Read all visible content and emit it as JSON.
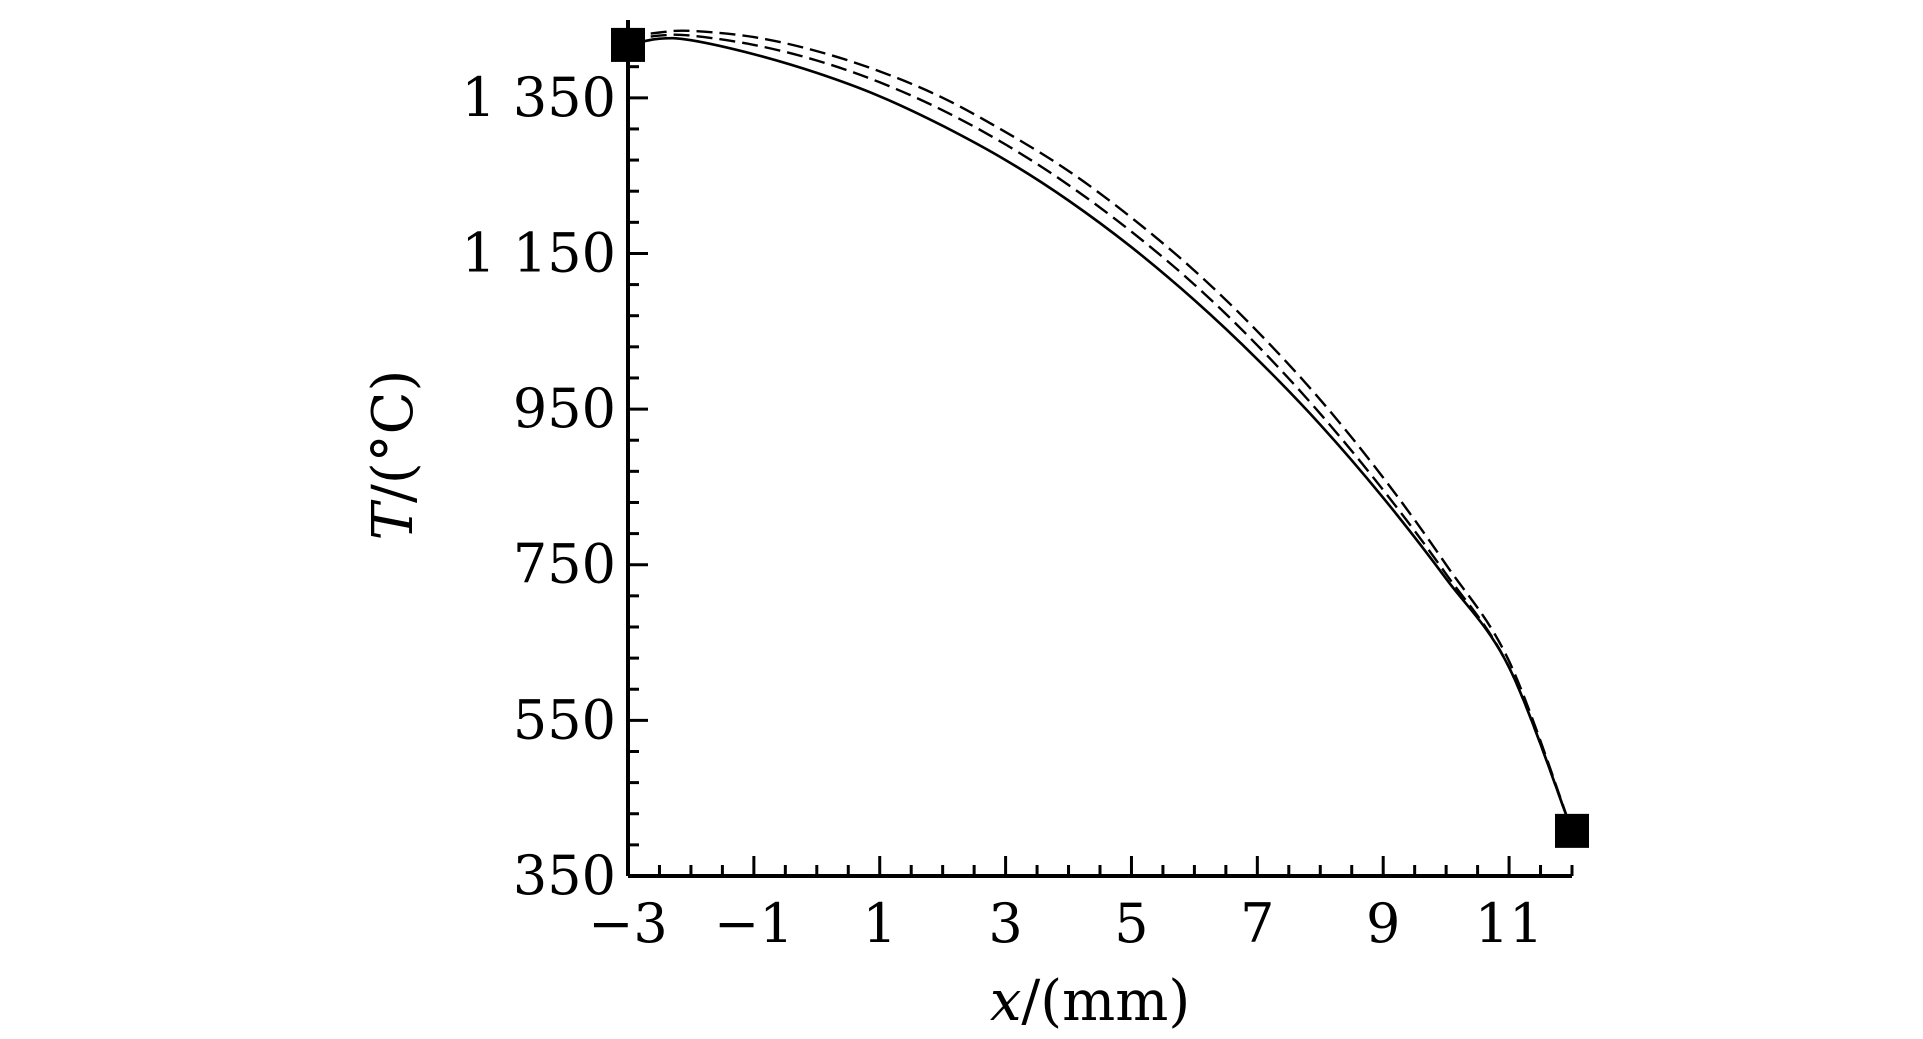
{
  "chart_data": {
    "type": "line",
    "title": "",
    "xlabel_var": "x",
    "xlabel_unit": "/(mm)",
    "ylabel_var": "T",
    "ylabel_unit": "/(°C)",
    "xlim": [
      -3,
      12
    ],
    "ylim": [
      350,
      1450
    ],
    "x_ticks": [
      -3,
      -1,
      1,
      3,
      5,
      7,
      9,
      11
    ],
    "x_tick_labels": [
      "−3",
      "−1",
      "1",
      "3",
      "5",
      "7",
      "9",
      "11"
    ],
    "y_ticks": [
      350,
      550,
      750,
      950,
      1150,
      1350
    ],
    "y_tick_labels": [
      "350",
      "550",
      "750",
      "950",
      "1 150",
      "1 350"
    ],
    "grid": false,
    "legend": "none",
    "series": [
      {
        "style": "solid",
        "x": [
          -3,
          -2.5,
          -2,
          -1,
          0,
          1,
          2,
          3,
          4,
          5,
          6,
          7,
          8,
          9,
          10,
          11,
          12
        ],
        "y": [
          1418,
          1426,
          1424,
          1406,
          1382,
          1352,
          1314,
          1270,
          1218,
          1158,
          1090,
          1014,
          930,
          836,
          732,
          618,
          408
        ]
      },
      {
        "style": "dashed",
        "x": [
          -3,
          -2.5,
          -2,
          -1,
          0,
          1,
          2,
          3,
          4,
          5,
          6,
          7,
          8,
          9,
          10,
          11,
          12
        ],
        "y": [
          1424,
          1430,
          1430,
          1418,
          1398,
          1370,
          1334,
          1290,
          1238,
          1178,
          1110,
          1032,
          944,
          846,
          738,
          618,
          408
        ]
      },
      {
        "style": "dashed",
        "x": [
          -3,
          -2.5,
          -2,
          -1,
          0,
          1,
          2,
          3,
          4,
          5,
          6,
          7,
          8,
          9,
          10,
          11,
          12
        ],
        "y": [
          1428,
          1434,
          1436,
          1428,
          1410,
          1384,
          1350,
          1306,
          1256,
          1196,
          1128,
          1050,
          962,
          862,
          750,
          626,
          408
        ]
      }
    ],
    "markers": [
      {
        "shape": "square",
        "x": -3,
        "y": 1418
      },
      {
        "shape": "square",
        "x": 12,
        "y": 408
      }
    ]
  }
}
